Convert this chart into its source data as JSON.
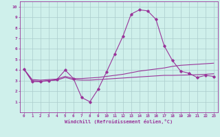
{
  "x": [
    0,
    1,
    2,
    3,
    4,
    5,
    6,
    7,
    8,
    9,
    10,
    11,
    12,
    13,
    14,
    15,
    16,
    17,
    18,
    19,
    20,
    21,
    22,
    23
  ],
  "line1": [
    4.1,
    2.9,
    2.9,
    3.0,
    3.1,
    4.0,
    3.2,
    1.4,
    1.0,
    2.2,
    3.8,
    5.5,
    7.2,
    9.3,
    9.7,
    9.6,
    8.8,
    6.3,
    4.9,
    3.9,
    3.7,
    3.3,
    3.5,
    3.4
  ],
  "line2": [
    4.1,
    3.1,
    3.05,
    3.1,
    3.15,
    3.4,
    3.2,
    3.2,
    3.25,
    3.3,
    3.4,
    3.5,
    3.6,
    3.75,
    3.9,
    4.0,
    4.1,
    4.2,
    4.35,
    4.45,
    4.5,
    4.55,
    4.6,
    4.65
  ],
  "line3": [
    4.1,
    3.0,
    2.95,
    3.0,
    3.05,
    3.3,
    3.1,
    3.05,
    3.05,
    3.1,
    3.15,
    3.2,
    3.25,
    3.3,
    3.35,
    3.4,
    3.45,
    3.5,
    3.5,
    3.52,
    3.54,
    3.56,
    3.6,
    3.65
  ],
  "line_color": "#993399",
  "bg_color": "#cff0eb",
  "grid_color": "#aacccc",
  "xlim": [
    -0.5,
    23.5
  ],
  "ylim": [
    0,
    10.5
  ],
  "xlabel": "Windchill (Refroidissement éolien,°C)",
  "yticks": [
    1,
    2,
    3,
    4,
    5,
    6,
    7,
    8,
    9,
    10
  ],
  "xticks": [
    0,
    1,
    2,
    3,
    4,
    5,
    6,
    7,
    8,
    9,
    10,
    11,
    12,
    13,
    14,
    15,
    16,
    17,
    18,
    19,
    20,
    21,
    22,
    23
  ]
}
